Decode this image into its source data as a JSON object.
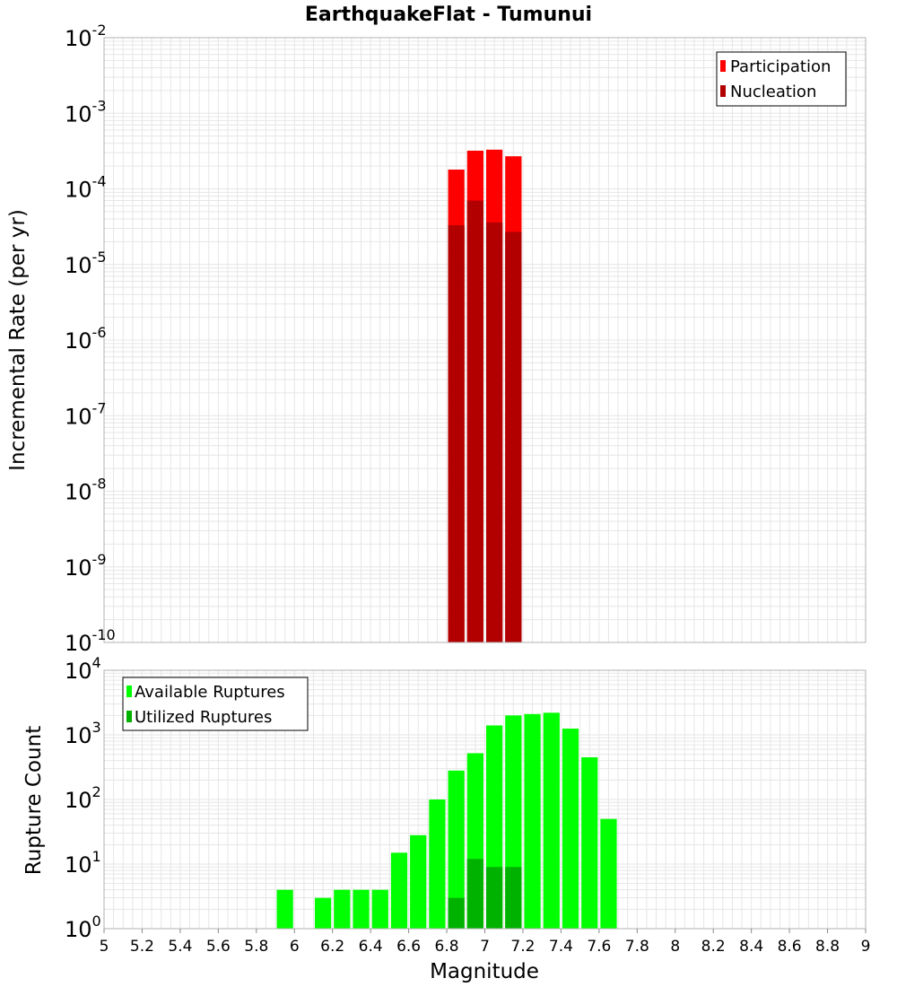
{
  "chart_data": {
    "title": "EarthquakeFlat - Tumunui",
    "xlabel": "Magnitude",
    "xlim": [
      5,
      9
    ],
    "xticks": [
      "5",
      "5.2",
      "5.4",
      "5.6",
      "5.8",
      "6",
      "6.2",
      "6.4",
      "6.6",
      "6.8",
      "7",
      "7.2",
      "7.4",
      "7.6",
      "7.8",
      "8",
      "8.2",
      "8.4",
      "8.6",
      "8.8",
      "9"
    ],
    "panels": [
      {
        "type": "bar",
        "yscale": "log",
        "ylabel": "Incremental Rate (per yr)",
        "ylim_exp": [
          -10,
          -2
        ],
        "ytick_exps": [
          "-10",
          "-9",
          "-8",
          "-7",
          "-6",
          "-5",
          "-4",
          "-3",
          "-2"
        ],
        "legend": {
          "position": "top-right",
          "entries": [
            {
              "name": "Participation",
              "color": "#ff0000"
            },
            {
              "name": "Nucleation",
              "color": "#b20000"
            }
          ]
        },
        "series": [
          {
            "name": "Participation",
            "color": "#ff0000",
            "x": [
              6.85,
              6.95,
              7.05,
              7.15
            ],
            "values": [
              0.00018,
              0.00032,
              0.00033,
              0.00027
            ]
          },
          {
            "name": "Nucleation",
            "color": "#b20000",
            "x": [
              6.85,
              6.95,
              7.05,
              7.15
            ],
            "values": [
              3.3e-05,
              7e-05,
              3.6e-05,
              2.7e-05
            ]
          }
        ]
      },
      {
        "type": "bar",
        "yscale": "log",
        "ylabel": "Rupture Count",
        "ylim_exp": [
          0,
          4
        ],
        "ytick_exps": [
          "0",
          "1",
          "2",
          "3",
          "4"
        ],
        "legend": {
          "position": "top-left",
          "entries": [
            {
              "name": "Available Ruptures",
              "color": "#00ff00"
            },
            {
              "name": "Utilized Ruptures",
              "color": "#00b200"
            }
          ]
        },
        "series": [
          {
            "name": "Available Ruptures",
            "color": "#00ff00",
            "x": [
              5.95,
              6.15,
              6.25,
              6.35,
              6.45,
              6.55,
              6.65,
              6.75,
              6.85,
              6.95,
              7.05,
              7.15,
              7.25,
              7.35,
              7.45,
              7.55,
              7.65
            ],
            "values": [
              4,
              3,
              4,
              4,
              4,
              15,
              28,
              100,
              280,
              520,
              1400,
              2000,
              2100,
              2200,
              1250,
              450,
              50
            ]
          },
          {
            "name": "Utilized Ruptures",
            "color": "#00b200",
            "x": [
              6.85,
              6.95,
              7.05,
              7.15
            ],
            "values": [
              3,
              12,
              9,
              9
            ]
          }
        ]
      }
    ]
  }
}
